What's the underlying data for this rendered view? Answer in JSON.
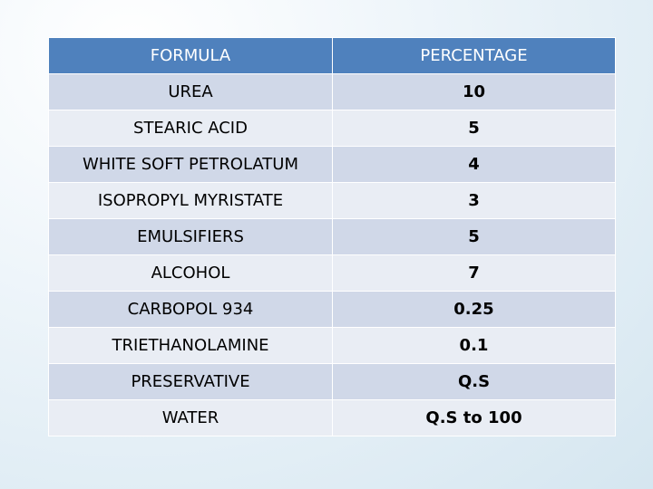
{
  "table": {
    "header": [
      "FORMULA",
      "PERCENTAGE"
    ],
    "rows": [
      [
        "UREA",
        "10"
      ],
      [
        "STEARIC ACID",
        "5"
      ],
      [
        "WHITE SOFT PETROLATUM",
        "4"
      ],
      [
        "ISOPROPYL MYRISTATE",
        "3"
      ],
      [
        "EMULSIFIERS",
        "5"
      ],
      [
        "ALCOHOL",
        "7"
      ],
      [
        "CARBOPOL 934",
        "0.25"
      ],
      [
        "TRIETHANOLAMINE",
        "0.1"
      ],
      [
        "PRESERVATIVE",
        "Q.S"
      ],
      [
        "WATER",
        "Q.S to 100"
      ]
    ]
  }
}
